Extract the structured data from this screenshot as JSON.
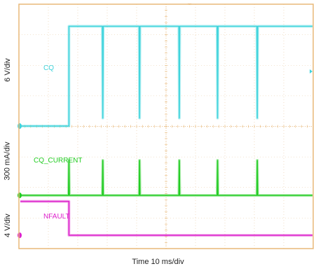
{
  "chart_data": {
    "type": "line",
    "title": "",
    "xlabel": "Time 10 ms/div",
    "x_unit": "ms",
    "x_per_div_ms": 10,
    "grid": true,
    "channels": [
      {
        "name": "CQ",
        "color": "#3fd4dc",
        "ylabel": "6 V/div",
        "baseline_div": 0,
        "high_div": 2.5,
        "step": {
          "t_ms": 17,
          "from_div": 0,
          "to_div": 2.5
        },
        "glitches": [
          {
            "t_ms": 28.5,
            "to_div": 0.2
          },
          {
            "t_ms": 41,
            "to_div": 0.2
          },
          {
            "t_ms": 54.5,
            "to_div": 0.2
          },
          {
            "t_ms": 67.5,
            "to_div": 0.2
          },
          {
            "t_ms": 81,
            "to_div": 0.2
          }
        ]
      },
      {
        "name": "CQ_CURRENT",
        "color": "#22cc22",
        "ylabel": "300 mA/div",
        "baseline_div": 0,
        "spikes": [
          {
            "t_ms": 17,
            "peak_div": 1
          },
          {
            "t_ms": 28.5,
            "peak_div": 1
          },
          {
            "t_ms": 41,
            "peak_div": 1
          },
          {
            "t_ms": 54.5,
            "peak_div": 1
          },
          {
            "t_ms": 67.5,
            "peak_div": 1
          },
          {
            "t_ms": 81,
            "peak_div": 1
          }
        ]
      },
      {
        "name": "NFAULT",
        "color": "#dd22cc",
        "ylabel": "4 V/div",
        "baseline_div": 0,
        "high_div": 1.1,
        "step": {
          "t_ms": 17,
          "from_div": 1.1,
          "to_div": 0
        }
      }
    ]
  },
  "colors": {
    "grid_border": "#e8b878",
    "background": "#ffffff"
  }
}
